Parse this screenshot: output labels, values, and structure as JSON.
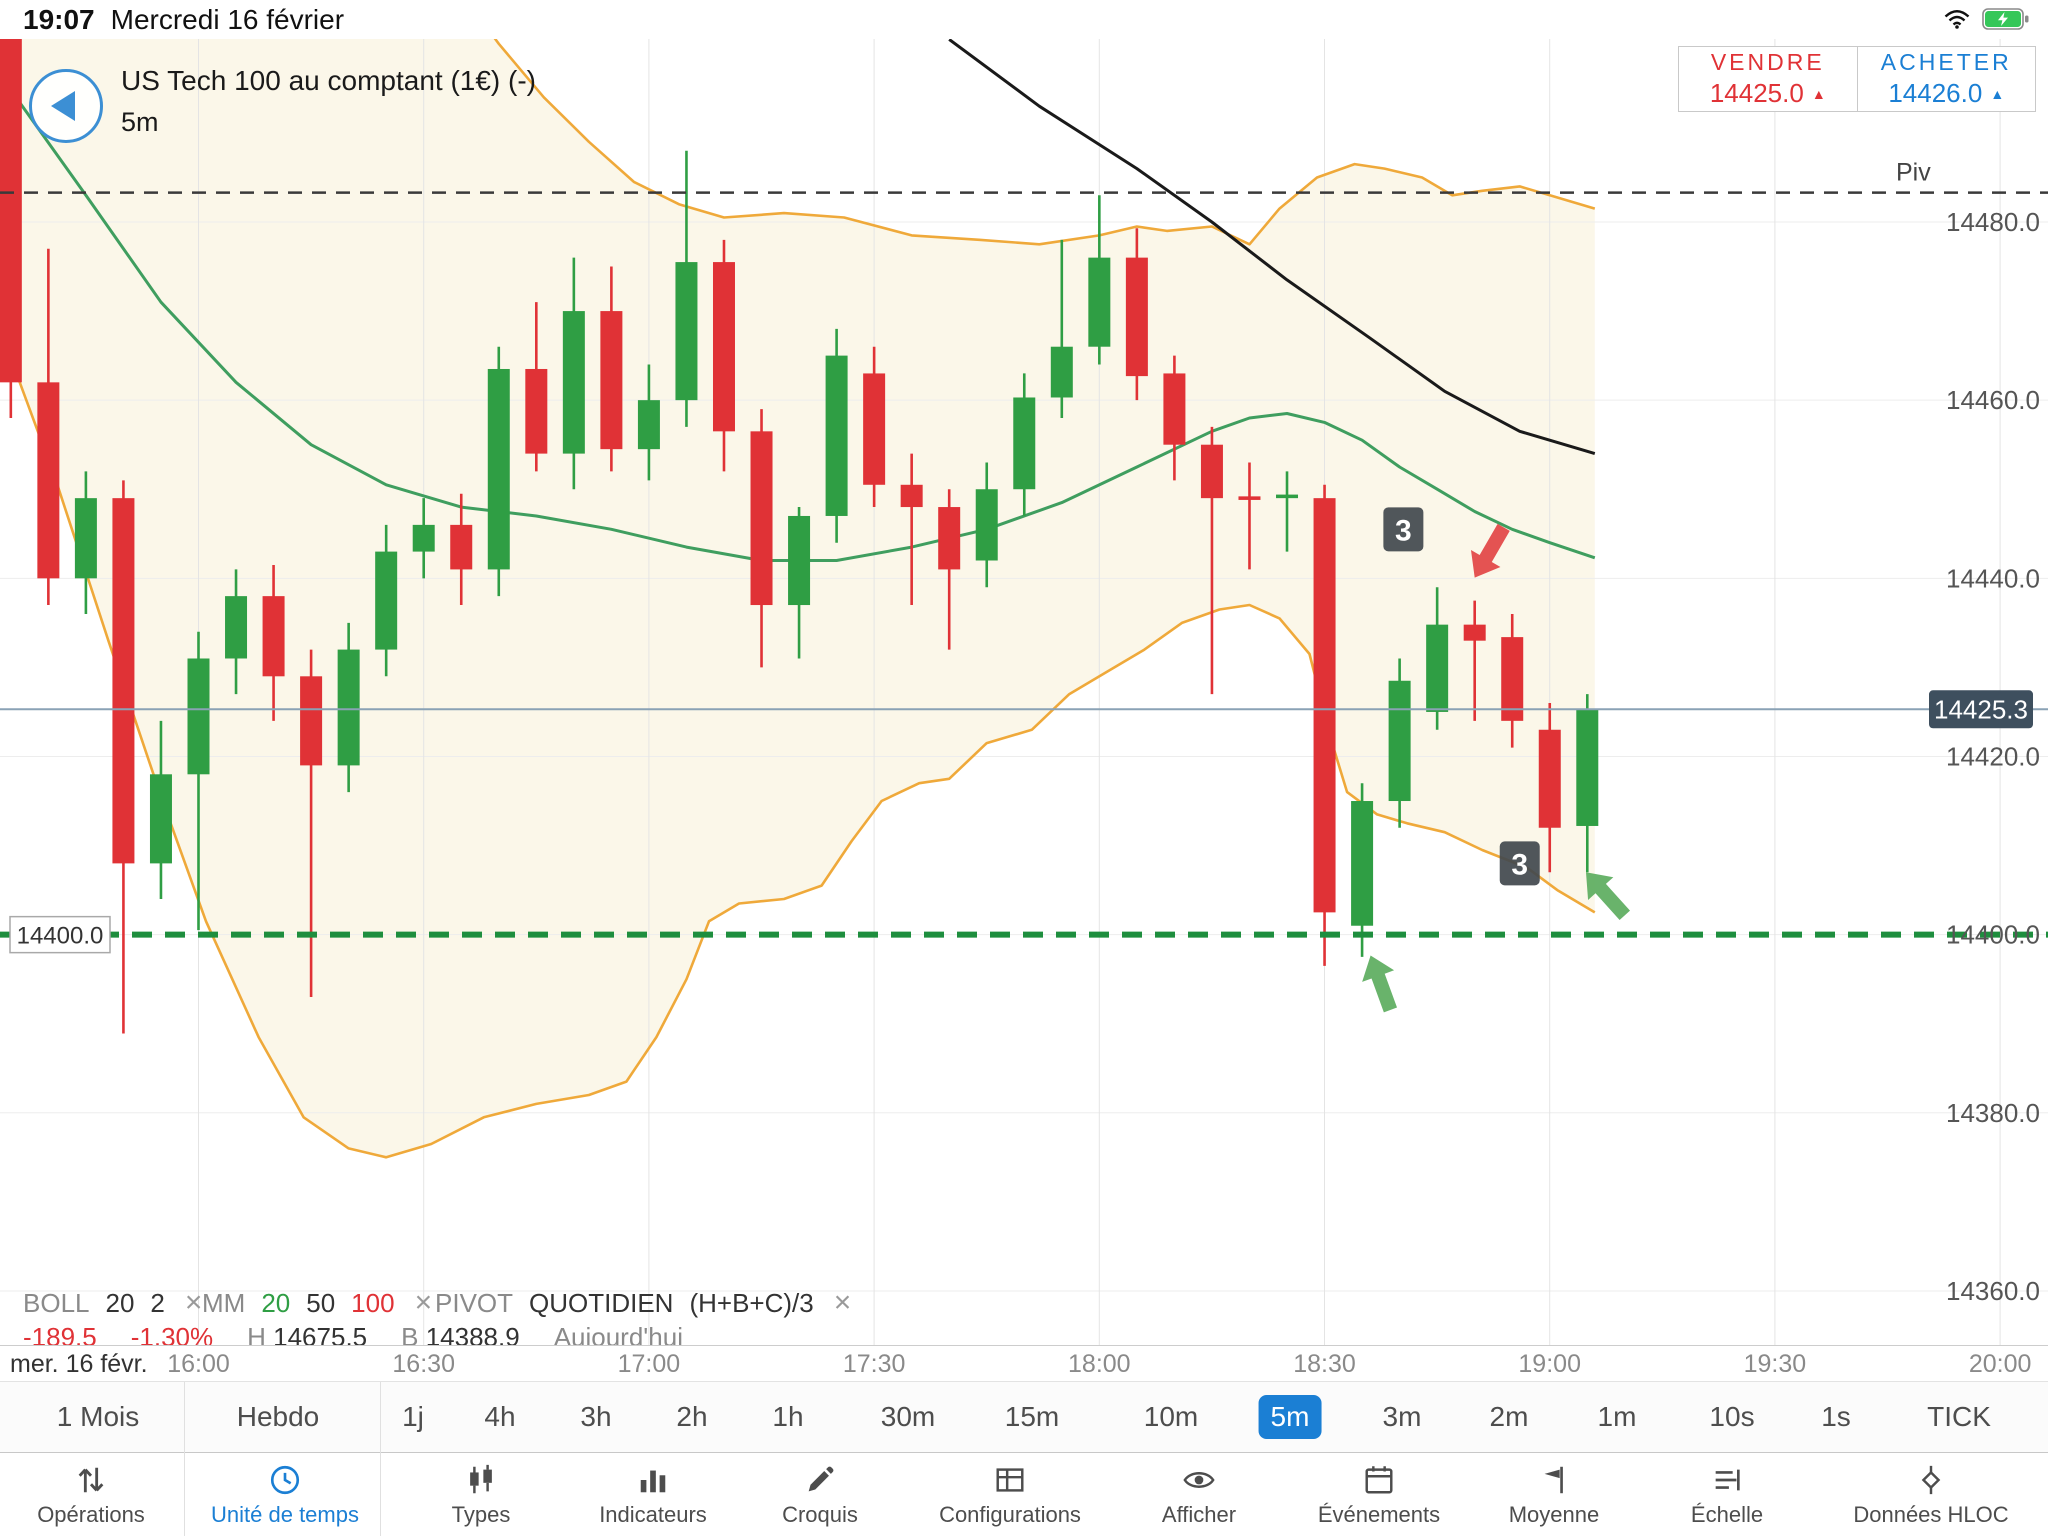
{
  "status_bar": {
    "time": "19:07",
    "date": "Mercredi 16 février"
  },
  "header": {
    "instrument": "US Tech 100 au comptant (1€) (-)",
    "timeframe": "5m"
  },
  "quote_panel": {
    "sell_label": "VENDRE",
    "sell_price": "14425.0",
    "buy_label": "ACHETER",
    "buy_price": "14426.0"
  },
  "indicators_legend": [
    {
      "name": "BOLL",
      "params": [
        "20",
        "2"
      ]
    },
    {
      "name": "MM",
      "params": [
        "20",
        "50",
        "100"
      ]
    },
    {
      "name": "PIVOT",
      "params": [
        "QUOTIDIEN",
        "(H+B+C)/3"
      ]
    }
  ],
  "stats_row": {
    "change": "-189.5",
    "change_pct": "-1.30%",
    "high_label": "H",
    "high": "14675.5",
    "low_label": "B",
    "low": "14388.9",
    "period": "Aujourd'hui"
  },
  "time_axis": {
    "date_label": "mer. 16 févr."
  },
  "timeframes": {
    "items": [
      "1 Mois",
      "Hebdo",
      "1j",
      "4h",
      "3h",
      "2h",
      "1h",
      "30m",
      "15m",
      "10m",
      "5m",
      "3m",
      "2m",
      "1m",
      "10s",
      "1s",
      "TICK"
    ],
    "selected": "5m"
  },
  "toolbar": [
    {
      "id": "operations",
      "label": "Opérations",
      "icon": "up-down-arrows-icon"
    },
    {
      "id": "unite-de-temps",
      "label": "Unité de temps",
      "icon": "clock-icon",
      "active": true
    },
    {
      "id": "types",
      "label": "Types",
      "icon": "candlestick-icon"
    },
    {
      "id": "indicateurs",
      "label": "Indicateurs",
      "icon": "bar-chart-icon"
    },
    {
      "id": "croquis",
      "label": "Croquis",
      "icon": "pencil-icon"
    },
    {
      "id": "configurations",
      "label": "Configurations",
      "icon": "layout-grid-icon"
    },
    {
      "id": "afficher",
      "label": "Afficher",
      "icon": "eye-icon"
    },
    {
      "id": "evenements",
      "label": "Événements",
      "icon": "calendar-icon"
    },
    {
      "id": "moyenne",
      "label": "Moyenne",
      "icon": "flag-icon"
    },
    {
      "id": "echelle",
      "label": "Échelle",
      "icon": "scale-lines-icon"
    },
    {
      "id": "donnees-hloc",
      "label": "Données HLOC",
      "icon": "hloc-icon"
    }
  ],
  "colors": {
    "up": "#2f9e44",
    "down": "#e03236",
    "bollinger": "#efa93a",
    "bollinger_fill": "#faf3e0",
    "ma20": "#3f9e5f",
    "ma100": "#1a1a1a",
    "pivot": "#3a3a3a",
    "support": "#1e8e3e",
    "price_line": "#8aa2b5",
    "price_badge_bg": "#3e4f5e",
    "badge_bg": "#43494f",
    "accent": "#1b7fd4",
    "sell": "#e03236",
    "buy": "#1b7fd4"
  },
  "chart_data": {
    "type": "candlestick",
    "instrument": "US Tech 100 au comptant (1€)",
    "interval": "5m",
    "x_ticks": [
      "16:00",
      "16:30",
      "17:00",
      "17:30",
      "18:00",
      "18:30",
      "19:00",
      "19:30",
      "20:00"
    ],
    "y_ticks": [
      14480,
      14460,
      14440,
      14420,
      14400,
      14380,
      14360
    ],
    "current_price": 14425.3,
    "pivot_line": {
      "label": "Piv",
      "price": 14483.3
    },
    "support_line": {
      "label": "14400.0",
      "price": 14400
    },
    "candles": [
      [
        -25,
        14501,
        14503,
        14458,
        14462
      ],
      [
        -20,
        14462,
        14477,
        14437,
        14440
      ],
      [
        -15,
        14440,
        14452,
        14436,
        14449
      ],
      [
        -10,
        14449,
        14451,
        14388.9,
        14408
      ],
      [
        -5,
        14408,
        14424,
        14404,
        14418
      ],
      [
        0,
        14418,
        14434,
        14400.5,
        14431
      ],
      [
        5,
        14431,
        14441,
        14427,
        14438
      ],
      [
        10,
        14438,
        14441.5,
        14424,
        14429
      ],
      [
        15,
        14429,
        14432,
        14393,
        14419
      ],
      [
        20,
        14419,
        14435,
        14416,
        14432
      ],
      [
        25,
        14432,
        14446,
        14429,
        14443
      ],
      [
        30,
        14443,
        14449,
        14440,
        14446
      ],
      [
        35,
        14446,
        14449.5,
        14437,
        14441
      ],
      [
        40,
        14441,
        14466,
        14438,
        14463.5
      ],
      [
        45,
        14463.5,
        14471,
        14452,
        14454
      ],
      [
        50,
        14454,
        14476,
        14450,
        14470
      ],
      [
        55,
        14470,
        14475,
        14452,
        14454.5
      ],
      [
        60,
        14454.5,
        14464,
        14451,
        14460
      ],
      [
        65,
        14460,
        14488,
        14457,
        14475.5
      ],
      [
        70,
        14475.5,
        14478,
        14452,
        14456.5
      ],
      [
        75,
        14456.5,
        14459,
        14430,
        14437
      ],
      [
        80,
        14437,
        14448,
        14431,
        14447
      ],
      [
        85,
        14447,
        14468,
        14444,
        14465
      ],
      [
        90,
        14463,
        14466,
        14448,
        14450.5
      ],
      [
        95,
        14450.5,
        14454,
        14437,
        14448
      ],
      [
        100,
        14448,
        14450,
        14432,
        14441
      ],
      [
        105,
        14442,
        14453,
        14439,
        14450
      ],
      [
        110,
        14450,
        14463,
        14447,
        14460.3
      ],
      [
        115,
        14460.3,
        14478,
        14458,
        14466
      ],
      [
        120,
        14466,
        14483,
        14464,
        14476
      ],
      [
        125,
        14476,
        14479.3,
        14460,
        14462.7
      ],
      [
        130,
        14463,
        14465,
        14451,
        14455
      ],
      [
        135,
        14455,
        14457,
        14427,
        14449
      ],
      [
        140,
        14449.2,
        14453,
        14441,
        14448.8
      ],
      [
        145,
        14449,
        14452,
        14443,
        14449.4
      ],
      [
        150,
        14449,
        14450.5,
        14396.5,
        14402.5
      ],
      [
        155,
        14401,
        14417,
        14397.5,
        14415
      ],
      [
        160,
        14415,
        14431,
        14412,
        14428.5
      ],
      [
        165,
        14425,
        14439,
        14423,
        14434.8
      ],
      [
        170,
        14434.8,
        14437.5,
        14424,
        14433
      ],
      [
        175,
        14433.4,
        14436,
        14421,
        14424
      ],
      [
        180,
        14423,
        14426,
        14407,
        14412
      ],
      [
        185,
        14412.2,
        14427,
        14407,
        14425.3
      ]
    ],
    "overlays": {
      "bollinger_upper": [
        [
          -26,
          14560
        ],
        [
          -15,
          14549
        ],
        [
          -5,
          14541
        ],
        [
          5,
          14533
        ],
        [
          15,
          14525
        ],
        [
          25,
          14516
        ],
        [
          33,
          14508
        ],
        [
          40,
          14500
        ],
        [
          46,
          14494
        ],
        [
          52,
          14489
        ],
        [
          58,
          14484.5
        ],
        [
          64,
          14482
        ],
        [
          70,
          14480.5
        ],
        [
          78,
          14481
        ],
        [
          86,
          14480.5
        ],
        [
          95,
          14478.5
        ],
        [
          104,
          14478
        ],
        [
          112,
          14477.5
        ],
        [
          120,
          14478.5
        ],
        [
          125,
          14479.5
        ],
        [
          129,
          14479
        ],
        [
          135,
          14479.5
        ],
        [
          140,
          14477.5
        ],
        [
          144,
          14481.5
        ],
        [
          149,
          14485
        ],
        [
          154,
          14486.5
        ],
        [
          158,
          14486
        ],
        [
          163,
          14485
        ],
        [
          167,
          14483
        ],
        [
          171,
          14483.5
        ],
        [
          176,
          14484
        ],
        [
          180,
          14483
        ],
        [
          186,
          14481.5
        ]
      ],
      "bollinger_lower": [
        [
          -26,
          14467
        ],
        [
          -19,
          14451
        ],
        [
          -12,
          14433
        ],
        [
          -5,
          14415.5
        ],
        [
          1,
          14401.5
        ],
        [
          8,
          14388.5
        ],
        [
          14,
          14379.5
        ],
        [
          20,
          14376
        ],
        [
          25,
          14375
        ],
        [
          31,
          14376.5
        ],
        [
          38,
          14379.5
        ],
        [
          45,
          14381
        ],
        [
          52,
          14382
        ],
        [
          57,
          14383.5
        ],
        [
          61,
          14388.5
        ],
        [
          65,
          14395
        ],
        [
          68,
          14401.5
        ],
        [
          72,
          14403.5
        ],
        [
          78,
          14404
        ],
        [
          83,
          14405.5
        ],
        [
          87,
          14410.5
        ],
        [
          91,
          14415
        ],
        [
          96,
          14417
        ],
        [
          100,
          14417.5
        ],
        [
          105,
          14421.5
        ],
        [
          111,
          14423
        ],
        [
          116,
          14427
        ],
        [
          121,
          14429.5
        ],
        [
          126,
          14432
        ],
        [
          131,
          14435
        ],
        [
          136,
          14436.5
        ],
        [
          140,
          14437
        ],
        [
          144,
          14435.5
        ],
        [
          148,
          14431.5
        ],
        [
          151,
          14421.5
        ],
        [
          153,
          14416
        ],
        [
          157,
          14413.5
        ],
        [
          161,
          14412.5
        ],
        [
          166,
          14411.5
        ],
        [
          171,
          14409.5
        ],
        [
          177,
          14407.5
        ],
        [
          181,
          14405
        ],
        [
          186,
          14402.5
        ]
      ],
      "ma20": [
        [
          -26,
          14496
        ],
        [
          -15,
          14483
        ],
        [
          -5,
          14471
        ],
        [
          5,
          14462
        ],
        [
          15,
          14455
        ],
        [
          25,
          14450.5
        ],
        [
          35,
          14448
        ],
        [
          45,
          14447
        ],
        [
          55,
          14445.5
        ],
        [
          65,
          14443.5
        ],
        [
          75,
          14442
        ],
        [
          85,
          14442
        ],
        [
          95,
          14443.5
        ],
        [
          105,
          14445.5
        ],
        [
          115,
          14448.5
        ],
        [
          125,
          14452.5
        ],
        [
          135,
          14456.5
        ],
        [
          140,
          14458
        ],
        [
          145,
          14458.5
        ],
        [
          150,
          14457.5
        ],
        [
          155,
          14455.5
        ],
        [
          160,
          14452.5
        ],
        [
          165,
          14450
        ],
        [
          170,
          14447.5
        ],
        [
          175,
          14445.5
        ],
        [
          180,
          14444
        ],
        [
          186,
          14442.3
        ]
      ],
      "ma100": [
        [
          100,
          14500.5
        ],
        [
          112,
          14493
        ],
        [
          125,
          14486
        ],
        [
          135,
          14480
        ],
        [
          145,
          14473.5
        ],
        [
          156,
          14467
        ],
        [
          166,
          14461
        ],
        [
          176,
          14456.5
        ],
        [
          186,
          14454
        ]
      ]
    },
    "markers": [
      {
        "kind": "badge",
        "text": "3",
        "t": 160.5,
        "price": 14445.5
      },
      {
        "kind": "badge",
        "text": "3",
        "t": 176,
        "price": 14408
      },
      {
        "kind": "arrow",
        "dir": "down",
        "t": 172,
        "price": 14443,
        "angle": 210,
        "color": "#e24444"
      },
      {
        "kind": "arrow",
        "dir": "up",
        "t": 157.5,
        "price": 14394.5,
        "angle": -20,
        "color": "#5cad5e"
      },
      {
        "kind": "arrow",
        "dir": "up",
        "t": 187.5,
        "price": 14404.5,
        "angle": -42,
        "color": "#5cad5e"
      }
    ]
  }
}
